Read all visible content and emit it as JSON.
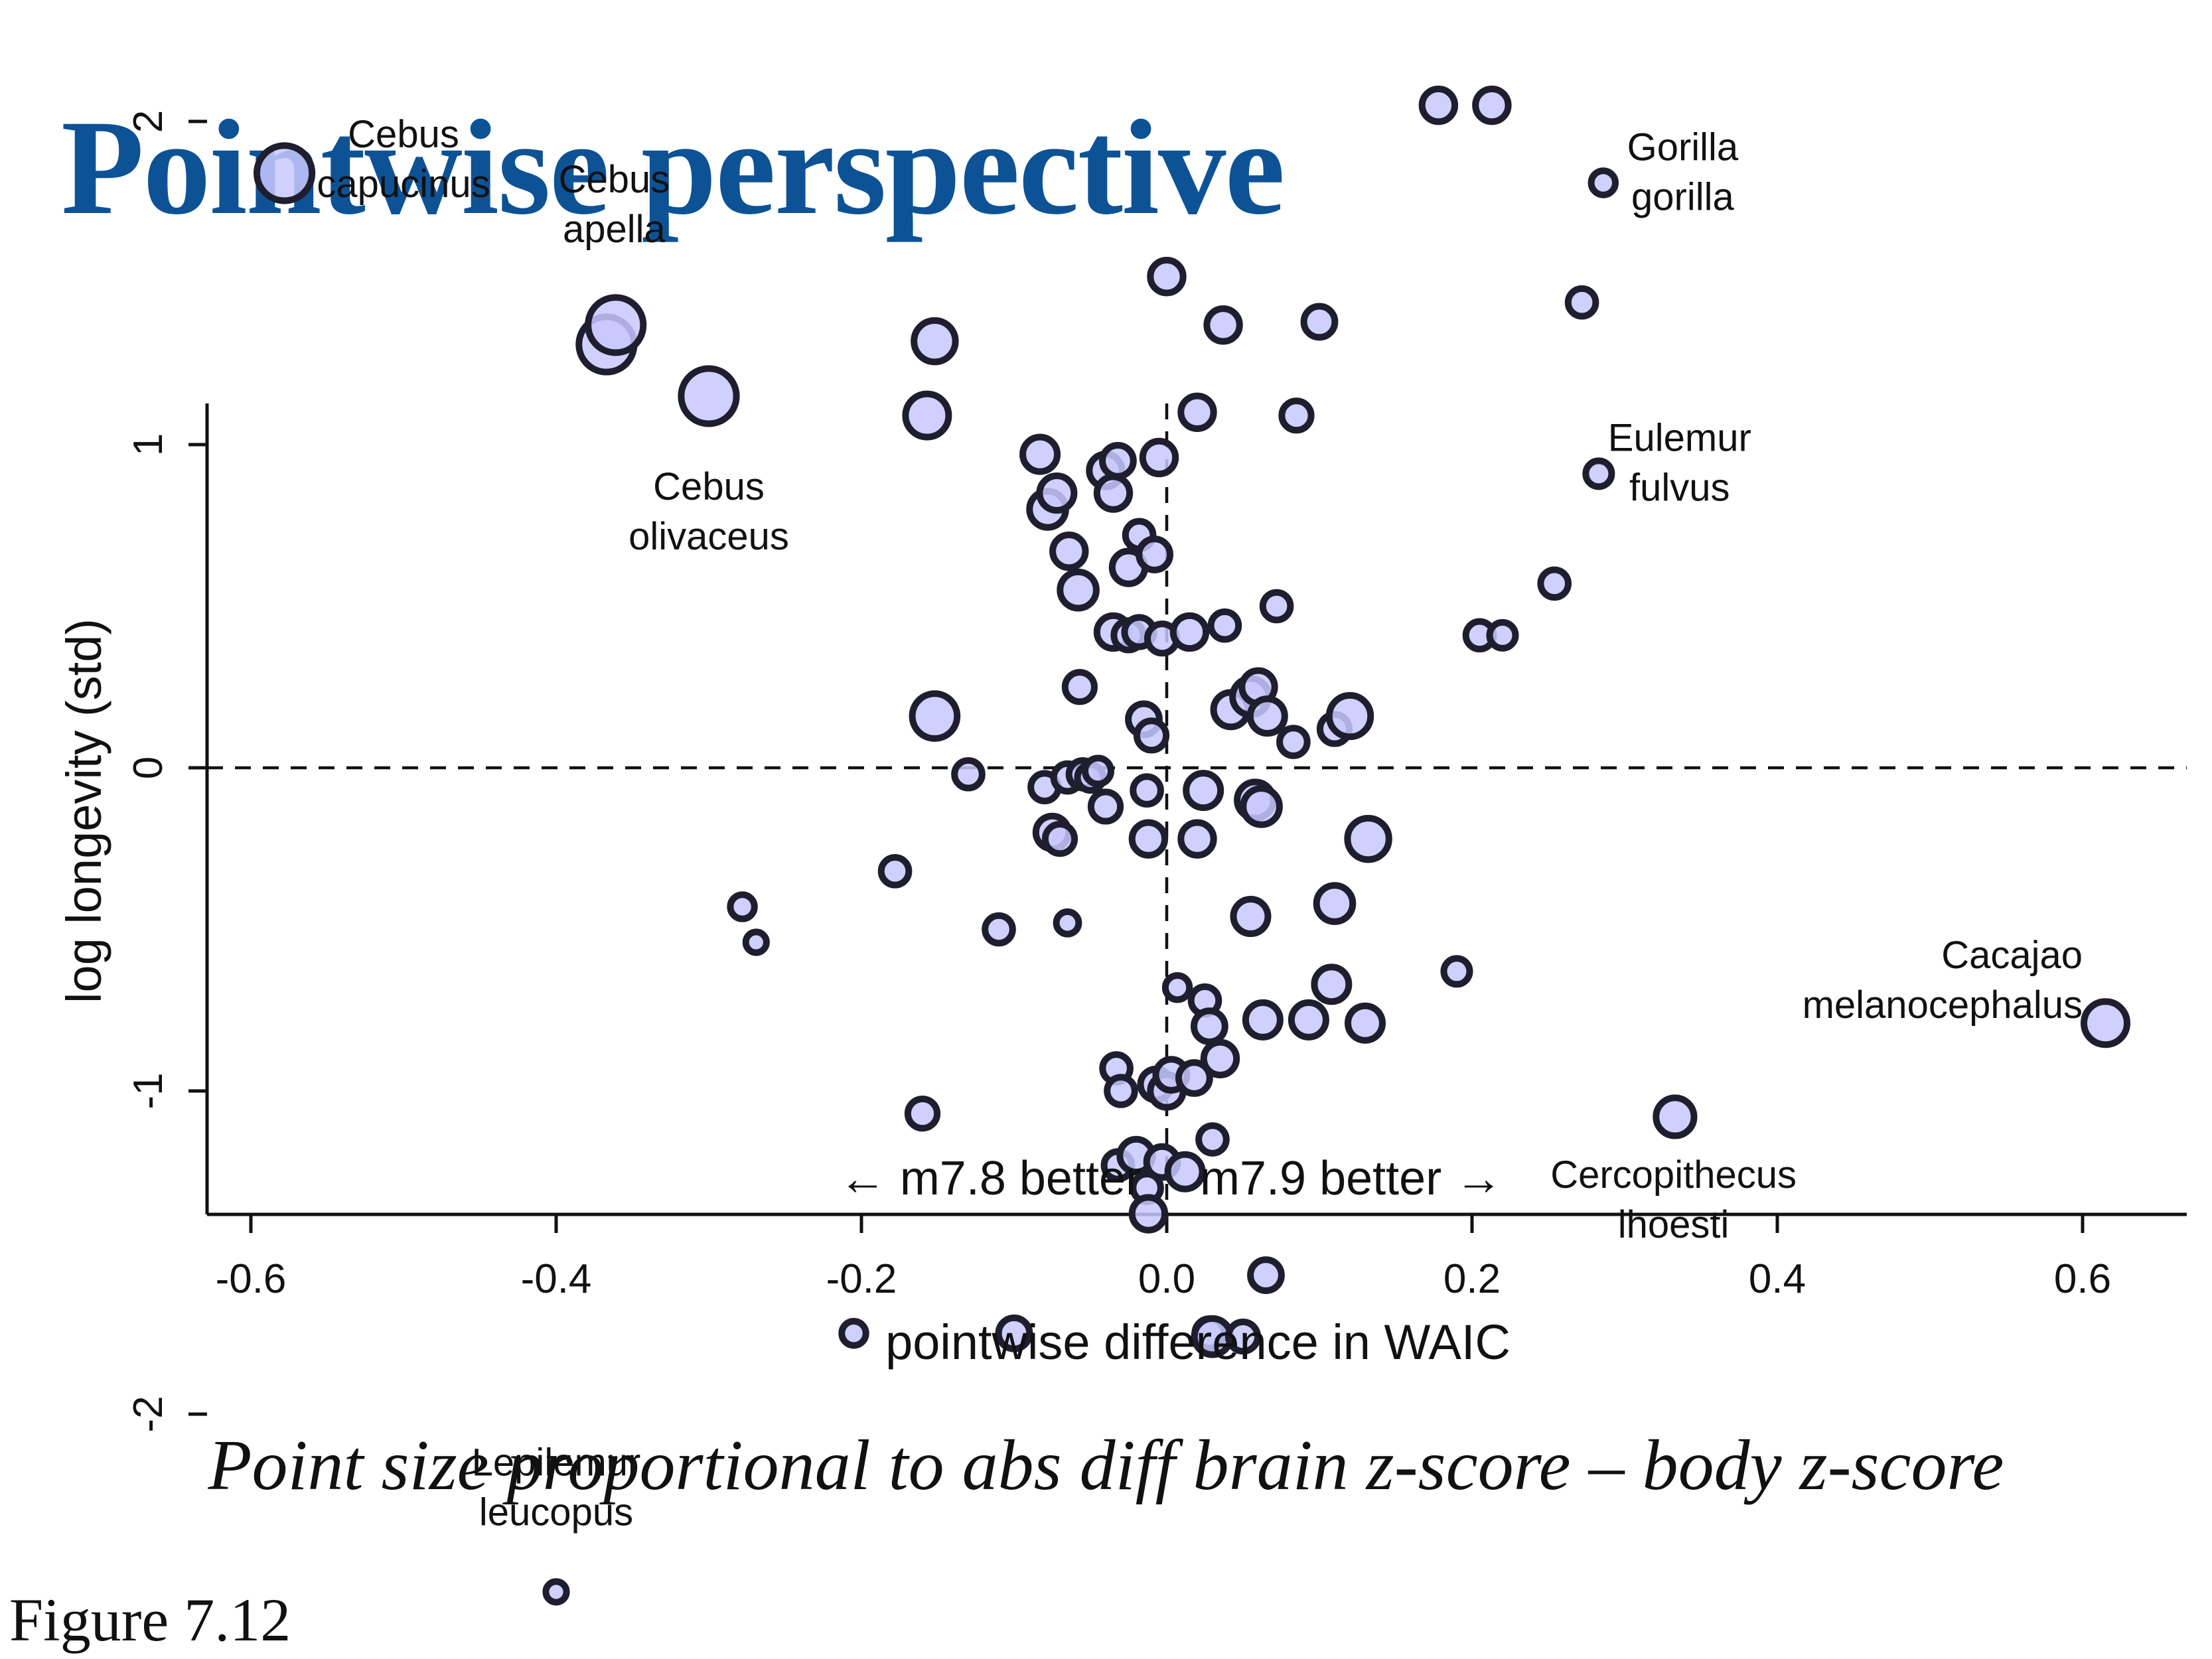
{
  "page": {
    "title": "Pointwise perspective",
    "caption": "Point size proportional to abs diff brain z-score – body z-score",
    "figure_label": "Figure 7.12"
  },
  "chart_data": {
    "type": "scatter",
    "xlabel": "pointwise difference in WAIC",
    "ylabel": "log longevity (std)",
    "xlim": [
      -0.6,
      0.6
    ],
    "ylim": [
      -2.5,
      2.2
    ],
    "x_ticks": [
      -0.6,
      -0.4,
      -0.2,
      0.0,
      0.2,
      0.4,
      0.6
    ],
    "x_tick_labels": [
      "-0.6",
      "-0.4",
      "-0.2",
      "0.0",
      "0.2",
      "0.4",
      "0.6"
    ],
    "y_ticks": [
      -2,
      -1,
      0,
      1,
      2
    ],
    "y_tick_labels": [
      "-2",
      "-1",
      "0",
      "1",
      "2"
    ],
    "reference_lines": {
      "x": 0,
      "y": 0,
      "style": "dashed"
    },
    "grid": false,
    "marker_color": "#c8c8ff",
    "marker_edge_color": "#1e1e2e",
    "annotations": {
      "left_better": "← m7.8 better",
      "right_better": "m7.9 better →"
    },
    "labels": [
      {
        "lines": [
          "Cebus",
          "capucinus"
        ],
        "x": -0.5,
        "y": 1.92,
        "align": "middle"
      },
      {
        "lines": [
          "Cebus",
          "apella"
        ],
        "x": -0.362,
        "y": 1.78,
        "align": "middle"
      },
      {
        "lines": [
          "Cebus",
          "olivaceus"
        ],
        "x": -0.3,
        "y": 0.83,
        "align": "middle"
      },
      {
        "lines": [
          "Gorilla",
          "gorilla"
        ],
        "x": 0.338,
        "y": 1.88,
        "align": "middle"
      },
      {
        "lines": [
          "Eulemur",
          "fulvus"
        ],
        "x": 0.336,
        "y": 0.98,
        "align": "middle"
      },
      {
        "lines": [
          "Cacajao",
          "melanocephalus"
        ],
        "x": 0.6,
        "y": -0.62,
        "align": "end"
      },
      {
        "lines": [
          "Cercopithecus",
          "lhoesti"
        ],
        "x": 0.332,
        "y": -1.3,
        "align": "middle"
      },
      {
        "lines": [
          "Lepilemur",
          "leucopus"
        ],
        "x": -0.4,
        "y": -2.19,
        "align": "middle"
      }
    ],
    "points": [
      {
        "x": -0.578,
        "y": 1.84,
        "s": 3.2
      },
      {
        "x": -0.367,
        "y": 1.31,
        "s": 3.2
      },
      {
        "x": -0.361,
        "y": 1.37,
        "s": 3.2
      },
      {
        "x": -0.3,
        "y": 1.15,
        "s": 3.2
      },
      {
        "x": -0.278,
        "y": -0.43,
        "s": 1.4
      },
      {
        "x": -0.269,
        "y": -0.54,
        "s": 1.2
      },
      {
        "x": -0.4,
        "y": -2.55,
        "s": 1.2
      },
      {
        "x": -0.205,
        "y": -1.75,
        "s": 1.4
      },
      {
        "x": -0.178,
        "y": -0.32,
        "s": 1.6
      },
      {
        "x": -0.16,
        "y": -1.07,
        "s": 1.7
      },
      {
        "x": -0.157,
        "y": 1.09,
        "s": 2.5
      },
      {
        "x": -0.152,
        "y": 1.32,
        "s": 2.4
      },
      {
        "x": -0.152,
        "y": 0.16,
        "s": 2.6
      },
      {
        "x": -0.13,
        "y": -0.02,
        "s": 1.6
      },
      {
        "x": -0.11,
        "y": -0.5,
        "s": 1.6
      },
      {
        "x": -0.1,
        "y": -1.75,
        "s": 1.8
      },
      {
        "x": -0.083,
        "y": 0.97,
        "s": 2.0
      },
      {
        "x": -0.08,
        "y": -0.06,
        "s": 1.6
      },
      {
        "x": -0.078,
        "y": 0.8,
        "s": 2.1
      },
      {
        "x": -0.075,
        "y": -0.2,
        "s": 1.9
      },
      {
        "x": -0.072,
        "y": 0.85,
        "s": 2.0
      },
      {
        "x": -0.07,
        "y": -0.22,
        "s": 1.7
      },
      {
        "x": -0.065,
        "y": -0.03,
        "s": 1.6
      },
      {
        "x": -0.064,
        "y": 0.67,
        "s": 1.9
      },
      {
        "x": -0.065,
        "y": -0.48,
        "s": 1.3
      },
      {
        "x": -0.058,
        "y": 0.55,
        "s": 2.1
      },
      {
        "x": -0.055,
        "y": -0.02,
        "s": 1.6
      },
      {
        "x": -0.057,
        "y": 0.25,
        "s": 1.7
      },
      {
        "x": -0.05,
        "y": -0.03,
        "s": 1.5
      },
      {
        "x": -0.045,
        "y": -0.01,
        "s": 1.5
      },
      {
        "x": -0.04,
        "y": -0.12,
        "s": 1.7
      },
      {
        "x": -0.04,
        "y": 0.92,
        "s": 1.9
      },
      {
        "x": -0.035,
        "y": 0.85,
        "s": 1.9
      },
      {
        "x": -0.035,
        "y": 0.42,
        "s": 1.9
      },
      {
        "x": -0.033,
        "y": -0.93,
        "s": 1.6
      },
      {
        "x": -0.032,
        "y": 0.95,
        "s": 1.8
      },
      {
        "x": -0.03,
        "y": -1.0,
        "s": 1.6
      },
      {
        "x": -0.032,
        "y": -1.23,
        "s": 1.6
      },
      {
        "x": -0.025,
        "y": 0.62,
        "s": 1.9
      },
      {
        "x": -0.025,
        "y": 0.41,
        "s": 1.7
      },
      {
        "x": -0.02,
        "y": -1.2,
        "s": 1.9
      },
      {
        "x": -0.018,
        "y": 0.72,
        "s": 1.6
      },
      {
        "x": -0.018,
        "y": 0.42,
        "s": 1.7
      },
      {
        "x": -0.015,
        "y": 0.15,
        "s": 1.8
      },
      {
        "x": -0.013,
        "y": -0.07,
        "s": 1.6
      },
      {
        "x": -0.013,
        "y": -1.3,
        "s": 1.6
      },
      {
        "x": -0.012,
        "y": -0.22,
        "s": 1.9
      },
      {
        "x": -0.012,
        "y": -1.38,
        "s": 1.9
      },
      {
        "x": -0.01,
        "y": 0.1,
        "s": 1.7
      },
      {
        "x": -0.008,
        "y": 0.66,
        "s": 1.8
      },
      {
        "x": -0.007,
        "y": -0.98,
        "s": 1.8
      },
      {
        "x": -0.005,
        "y": 0.96,
        "s": 1.9
      },
      {
        "x": -0.003,
        "y": 0.4,
        "s": 1.7
      },
      {
        "x": -0.003,
        "y": -1.22,
        "s": 1.8
      },
      {
        "x": 0.0,
        "y": 1.52,
        "s": 1.9
      },
      {
        "x": 0.0,
        "y": -1.0,
        "s": 1.9
      },
      {
        "x": 0.003,
        "y": -0.95,
        "s": 1.8
      },
      {
        "x": 0.007,
        "y": -0.68,
        "s": 1.4
      },
      {
        "x": 0.012,
        "y": -1.25,
        "s": 2.0
      },
      {
        "x": 0.015,
        "y": 0.42,
        "s": 1.9
      },
      {
        "x": 0.018,
        "y": -0.96,
        "s": 1.8
      },
      {
        "x": 0.02,
        "y": -0.22,
        "s": 1.9
      },
      {
        "x": 0.02,
        "y": 1.1,
        "s": 1.9
      },
      {
        "x": 0.024,
        "y": -0.07,
        "s": 2.0
      },
      {
        "x": 0.025,
        "y": -0.72,
        "s": 1.6
      },
      {
        "x": 0.028,
        "y": -1.75,
        "s": 1.7
      },
      {
        "x": 0.028,
        "y": -0.8,
        "s": 1.8
      },
      {
        "x": 0.03,
        "y": -1.15,
        "s": 1.6
      },
      {
        "x": 0.03,
        "y": -1.76,
        "s": 2.1
      },
      {
        "x": 0.035,
        "y": -0.9,
        "s": 1.9
      },
      {
        "x": 0.037,
        "y": 1.37,
        "s": 1.9
      },
      {
        "x": 0.038,
        "y": 0.44,
        "s": 1.6
      },
      {
        "x": 0.042,
        "y": 0.18,
        "s": 2.0
      },
      {
        "x": 0.055,
        "y": 0.22,
        "s": 2.1
      },
      {
        "x": 0.055,
        "y": -0.46,
        "s": 2.0
      },
      {
        "x": 0.058,
        "y": -0.1,
        "s": 2.1
      },
      {
        "x": 0.06,
        "y": 0.25,
        "s": 1.9
      },
      {
        "x": 0.062,
        "y": -0.12,
        "s": 2.1
      },
      {
        "x": 0.066,
        "y": 0.16,
        "s": 2.0
      },
      {
        "x": 0.05,
        "y": -1.76,
        "s": 1.7
      },
      {
        "x": 0.063,
        "y": -0.78,
        "s": 2.0
      },
      {
        "x": 0.065,
        "y": -1.57,
        "s": 1.8
      },
      {
        "x": 0.072,
        "y": 0.5,
        "s": 1.6
      },
      {
        "x": 0.083,
        "y": 0.08,
        "s": 1.6
      },
      {
        "x": 0.085,
        "y": 1.09,
        "s": 1.7
      },
      {
        "x": 0.093,
        "y": -0.78,
        "s": 2.0
      },
      {
        "x": 0.1,
        "y": 1.38,
        "s": 1.8
      },
      {
        "x": 0.108,
        "y": -0.67,
        "s": 2.0
      },
      {
        "x": 0.11,
        "y": -0.42,
        "s": 2.1
      },
      {
        "x": 0.11,
        "y": 0.12,
        "s": 1.7
      },
      {
        "x": 0.12,
        "y": 0.16,
        "s": 2.4
      },
      {
        "x": 0.13,
        "y": -0.79,
        "s": 2.0
      },
      {
        "x": 0.132,
        "y": -0.22,
        "s": 2.4
      },
      {
        "x": 0.178,
        "y": 2.05,
        "s": 1.9
      },
      {
        "x": 0.19,
        "y": -0.63,
        "s": 1.5
      },
      {
        "x": 0.205,
        "y": 0.41,
        "s": 1.6
      },
      {
        "x": 0.213,
        "y": 2.05,
        "s": 1.9
      },
      {
        "x": 0.22,
        "y": 0.41,
        "s": 1.5
      },
      {
        "x": 0.254,
        "y": 0.57,
        "s": 1.6
      },
      {
        "x": 0.272,
        "y": 1.44,
        "s": 1.6
      },
      {
        "x": 0.283,
        "y": 0.91,
        "s": 1.5
      },
      {
        "x": 0.286,
        "y": 1.81,
        "s": 1.4
      },
      {
        "x": 0.333,
        "y": -1.08,
        "s": 2.2
      },
      {
        "x": 0.615,
        "y": -0.79,
        "s": 2.5
      }
    ]
  }
}
